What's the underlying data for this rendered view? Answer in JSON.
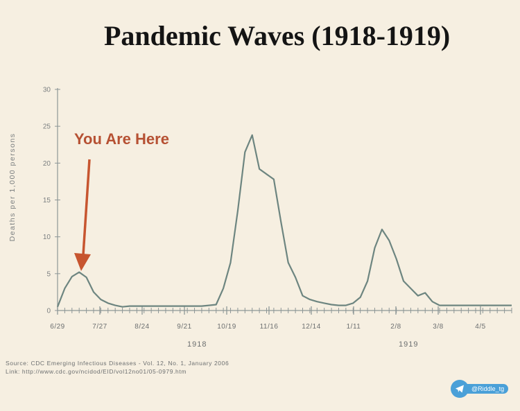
{
  "chart_data": {
    "type": "line",
    "title": "Pandemic Waves (1918-1919)",
    "ylabel": "Deaths per 1,000 persons",
    "ylim": [
      0,
      30
    ],
    "yticks": [
      0,
      5,
      10,
      15,
      20,
      25,
      30
    ],
    "xticks": [
      "6/29",
      "7/27",
      "8/24",
      "9/21",
      "10/19",
      "11/16",
      "12/14",
      "1/11",
      "2/8",
      "3/8",
      "4/5"
    ],
    "year_labels": [
      "1918",
      "1919"
    ],
    "grid": false,
    "series": [
      {
        "x": [
          0,
          1,
          2,
          3,
          4,
          5,
          6,
          7,
          8,
          9,
          10,
          11,
          12,
          13,
          14,
          15,
          16,
          17,
          18,
          19,
          20,
          21,
          22,
          23,
          24,
          25,
          26,
          27,
          28,
          29,
          30,
          31,
          32,
          33,
          34,
          35,
          36,
          37,
          38,
          39,
          40,
          41,
          42,
          43,
          44,
          45,
          46,
          47,
          48,
          49,
          50,
          51,
          52,
          53,
          54,
          55,
          56,
          57,
          58,
          59,
          60,
          61,
          62,
          63
        ],
        "y": [
          0.5,
          3.0,
          4.6,
          5.2,
          4.5,
          2.5,
          1.5,
          1.0,
          0.7,
          0.5,
          0.6,
          0.6,
          0.6,
          0.6,
          0.6,
          0.6,
          0.6,
          0.6,
          0.6,
          0.6,
          0.6,
          0.7,
          0.8,
          3.0,
          6.5,
          13.5,
          21.5,
          23.8,
          19.2,
          18.5,
          17.8,
          12.0,
          6.5,
          4.5,
          2.0,
          1.5,
          1.2,
          1.0,
          0.8,
          0.7,
          0.7,
          1.0,
          1.8,
          4.0,
          8.5,
          11.0,
          9.5,
          7.0,
          4.0,
          3.0,
          2.0,
          2.4,
          1.2,
          0.7,
          0.7,
          0.7,
          0.7,
          0.7,
          0.7,
          0.7,
          0.7,
          0.7,
          0.7,
          0.7
        ]
      }
    ],
    "annotations": [
      "You Are Here"
    ]
  },
  "source_line": "Source: CDC Emerging Infectious Diseases - Vol. 12, No. 1, January 2006",
  "link_line": "Link: http://www.cdc.gov/ncidod/EID/vol12no01/05-0979.htm",
  "badge_label": "@Riddle_tg",
  "colors": {
    "line": "#6d8580",
    "axis": "#8d9697",
    "annotation": "#c7552f",
    "background": "#f6efe1",
    "badge": "#4aa0d8"
  }
}
